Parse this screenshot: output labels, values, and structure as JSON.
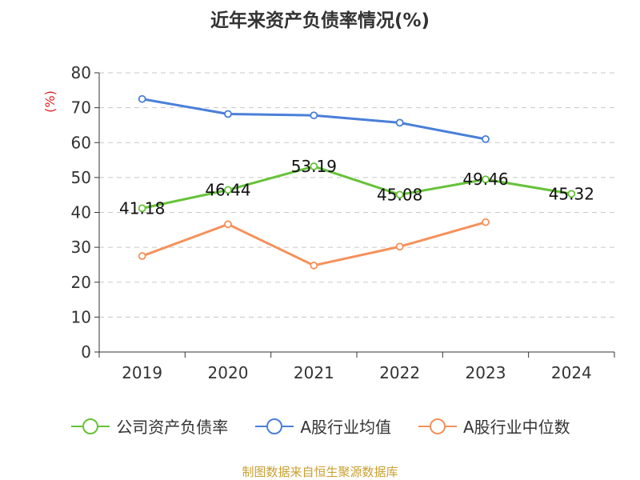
{
  "chart_data": {
    "type": "line",
    "title": "近年来资产负债率情况(%)",
    "ylabel": "(%)",
    "xlabel": "",
    "categories": [
      "2019",
      "2020",
      "2021",
      "2022",
      "2023",
      "2024"
    ],
    "ylim": [
      0,
      80
    ],
    "yticks": [
      0,
      10,
      20,
      30,
      40,
      50,
      60,
      70,
      80
    ],
    "grid": true,
    "legend_position": "bottom",
    "series": [
      {
        "name": "公司资产负债率",
        "color": "#67c23a",
        "values": [
          41.18,
          46.44,
          53.19,
          45.08,
          49.46,
          45.32
        ],
        "labels": [
          "41.18",
          "46.44",
          "53.19",
          "45.08",
          "49.46",
          "45.32"
        ]
      },
      {
        "name": "A股行业均值",
        "color": "#4a7fd8",
        "values": [
          72.5,
          68.2,
          67.8,
          65.7,
          61.0,
          null
        ],
        "labels": []
      },
      {
        "name": "A股行业中位数",
        "color": "#f5915a",
        "values": [
          27.5,
          36.6,
          24.8,
          30.2,
          37.2,
          null
        ],
        "labels": []
      }
    ]
  },
  "source": "制图数据来自恒生聚源数据库"
}
